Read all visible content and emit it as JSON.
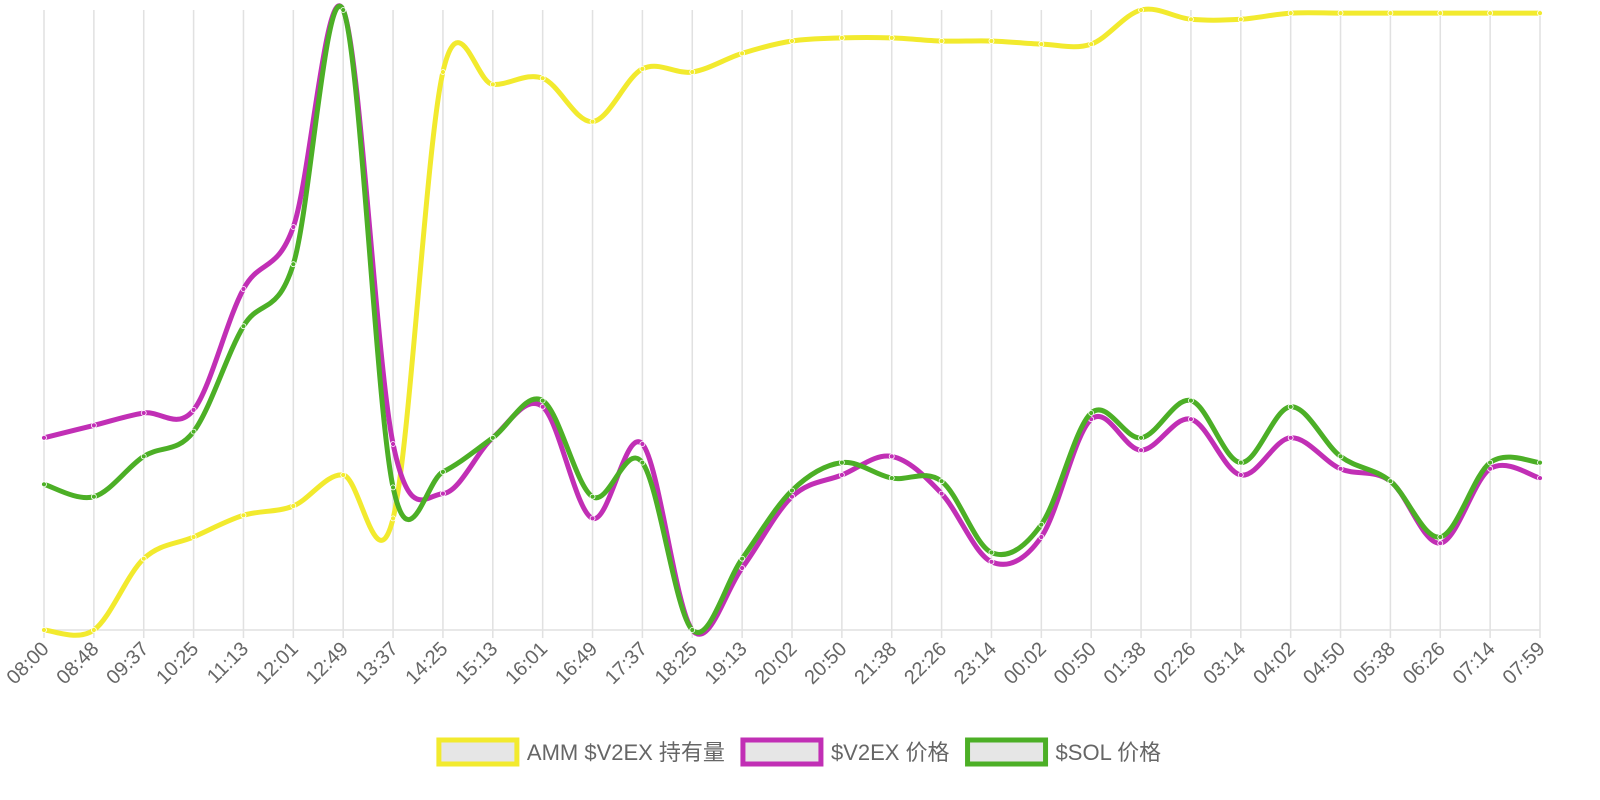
{
  "chart_data": {
    "type": "line",
    "x_labels": [
      "08:00",
      "08:48",
      "09:37",
      "10:25",
      "11:13",
      "12:01",
      "12:49",
      "13:37",
      "14:25",
      "15:13",
      "16:01",
      "16:49",
      "17:37",
      "18:25",
      "19:13",
      "20:02",
      "20:50",
      "21:38",
      "22:26",
      "23:14",
      "00:02",
      "00:50",
      "01:38",
      "02:26",
      "03:14",
      "04:02",
      "04:50",
      "05:38",
      "06:26",
      "07:14",
      "07:59"
    ],
    "y_axis_labels_shown": false,
    "grid": {
      "vertical": true,
      "horizontal": false
    },
    "legend_position": "bottom",
    "series": [
      {
        "name": "AMM $V2EX 持有量",
        "color": "#f2ea2e",
        "values": [
          0,
          0,
          11.5,
          15,
          18.5,
          20,
          25,
          18,
          90,
          88,
          89,
          82,
          90.5,
          90,
          93,
          95,
          95.5,
          95.5,
          95,
          95,
          94.5,
          94.5,
          100,
          98.5,
          98.5,
          99.5,
          99.5,
          99.5,
          99.5,
          99.5,
          99.5
        ]
      },
      {
        "name": "$V2EX 价格",
        "color": "#c12fb5",
        "values": [
          31,
          33,
          35,
          35.5,
          55,
          65,
          100,
          30,
          22,
          31,
          36,
          18,
          30,
          0,
          10,
          21.5,
          25,
          28,
          22,
          11,
          15,
          34,
          29,
          34,
          25,
          31,
          26,
          24,
          14,
          26,
          24.5
        ]
      },
      {
        "name": "$SOL 价格",
        "color": "#4caf26",
        "values": [
          23.5,
          21.5,
          28,
          32,
          49,
          59,
          100,
          23,
          25.5,
          31,
          37,
          21.5,
          27,
          0,
          11.5,
          22.5,
          27,
          24.5,
          24,
          12.5,
          17,
          35,
          31,
          37,
          27,
          36,
          28,
          24,
          15,
          27,
          27
        ]
      }
    ]
  }
}
